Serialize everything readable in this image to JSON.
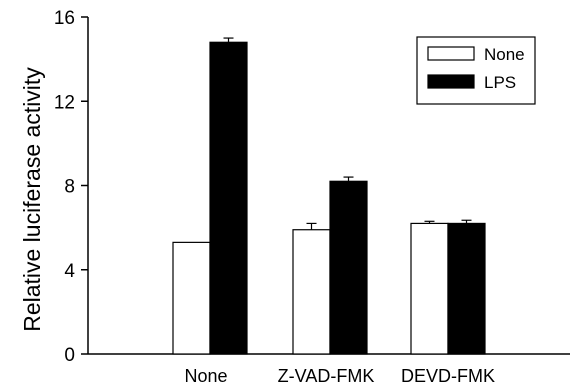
{
  "chart_data": {
    "type": "bar",
    "title": "",
    "xlabel": "",
    "ylabel": "Relative luciferase activity",
    "ylim": [
      0,
      16
    ],
    "yticks": [
      "0",
      "4",
      "8",
      "12",
      "16"
    ],
    "categories": [
      "None",
      "Z-VAD-FMK",
      "DEVD-FMK"
    ],
    "series": [
      {
        "name": "None",
        "fill": "#ffffff",
        "values": [
          5.3,
          5.9,
          6.2
        ],
        "errors": [
          0.0,
          0.3,
          0.1
        ]
      },
      {
        "name": "LPS",
        "fill": "#000000",
        "values": [
          14.8,
          8.2,
          6.2
        ],
        "errors": [
          0.2,
          0.2,
          0.15
        ]
      }
    ],
    "grid": false,
    "legend": "top-right"
  }
}
